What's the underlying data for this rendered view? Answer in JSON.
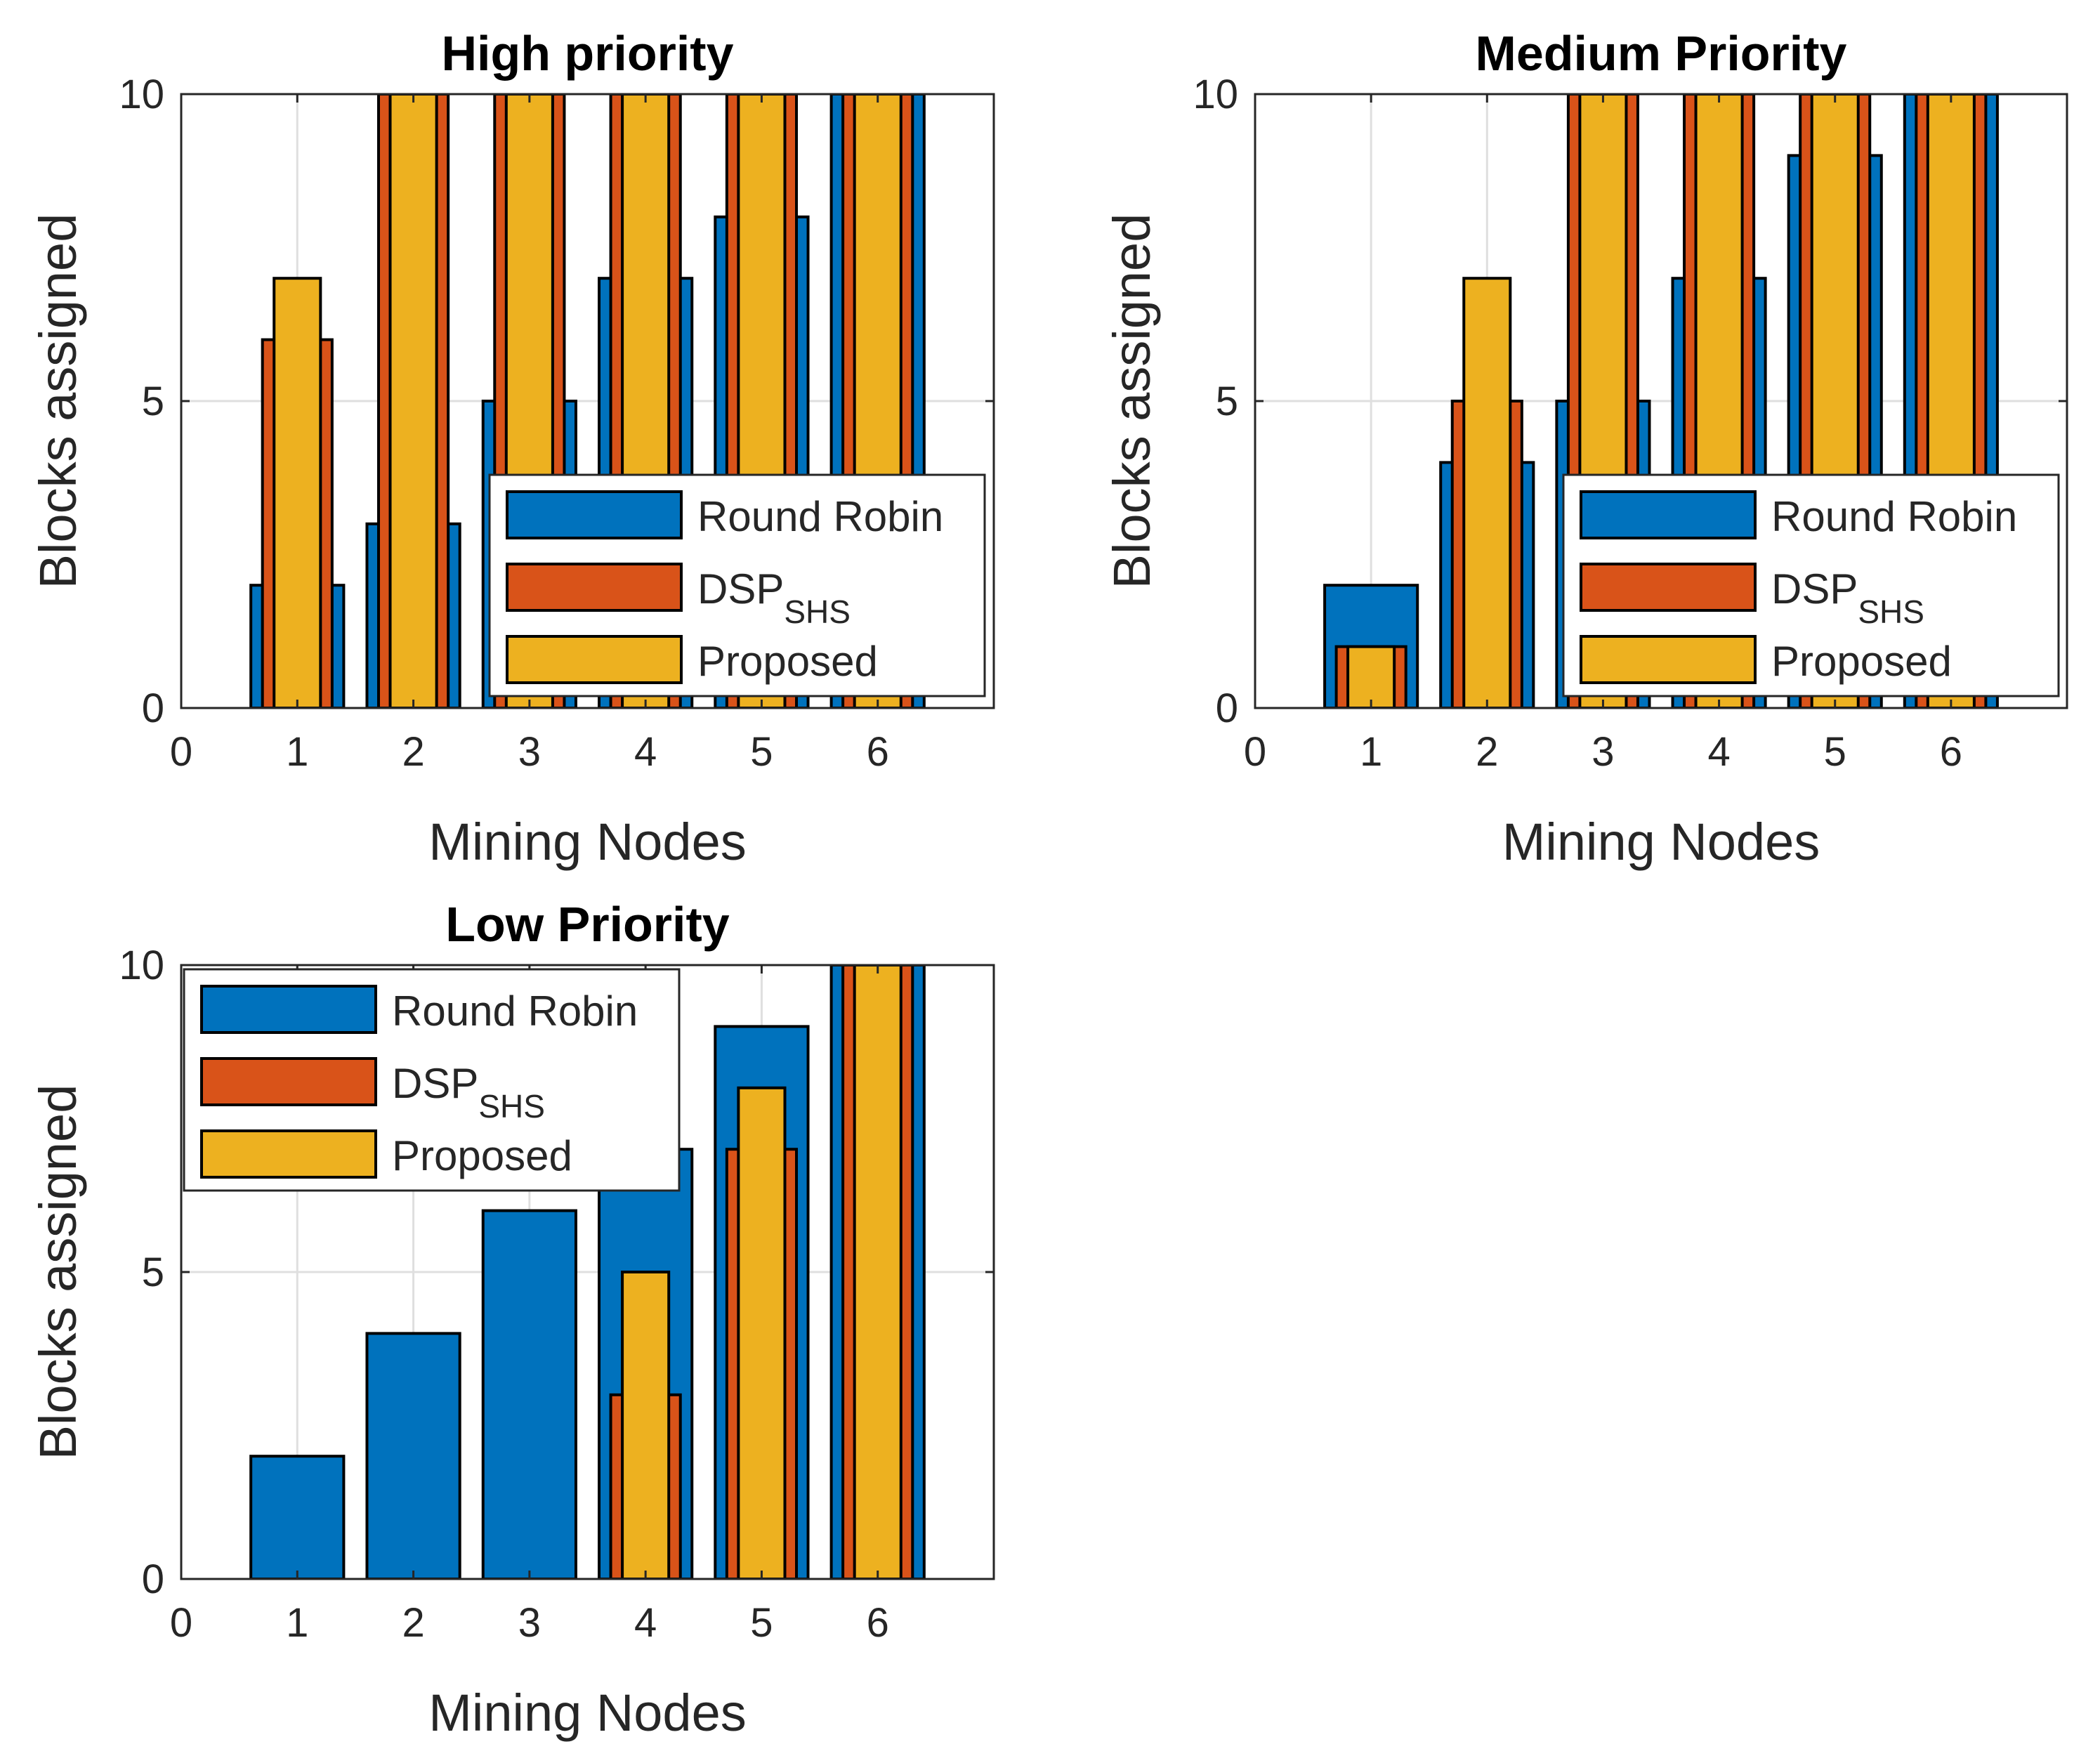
{
  "chart_data": [
    {
      "type": "bar",
      "title": "High priority",
      "xlabel": "Mining Nodes",
      "ylabel": "Blocks assigned",
      "xlim": [
        0,
        7
      ],
      "ylim": [
        0,
        10
      ],
      "xticks": [
        "0",
        "1",
        "2",
        "3",
        "4",
        "5",
        "6"
      ],
      "yticks": [
        "0",
        "5",
        "10"
      ],
      "grid": true,
      "legend_position": "bottom-right",
      "categories": [
        1,
        2,
        3,
        4,
        5,
        6
      ],
      "series": [
        {
          "name": "Round Robin",
          "sub": "",
          "color": "#0072BD",
          "values": [
            2,
            3,
            5,
            7,
            8,
            10
          ]
        },
        {
          "name": "DSP",
          "sub": "SHS",
          "color": "#D95319",
          "values": [
            6,
            10,
            10,
            10,
            10,
            10
          ]
        },
        {
          "name": "Proposed",
          "sub": "",
          "color": "#EDB120",
          "values": [
            7,
            10,
            10,
            10,
            10,
            10
          ]
        }
      ]
    },
    {
      "type": "bar",
      "title": "Medium Priority",
      "xlabel": "Mining Nodes",
      "ylabel": "Blocks assigned",
      "xlim": [
        0,
        7
      ],
      "ylim": [
        0,
        10
      ],
      "xticks": [
        "0",
        "1",
        "2",
        "3",
        "4",
        "5",
        "6"
      ],
      "yticks": [
        "0",
        "5",
        "10"
      ],
      "grid": true,
      "legend_position": "bottom-right",
      "categories": [
        1,
        2,
        3,
        4,
        5,
        6
      ],
      "series": [
        {
          "name": "Round Robin",
          "sub": "",
          "color": "#0072BD",
          "values": [
            2,
            4,
            5,
            7,
            9,
            10
          ]
        },
        {
          "name": "DSP",
          "sub": "SHS",
          "color": "#D95319",
          "values": [
            1,
            5,
            10,
            10,
            10,
            10
          ]
        },
        {
          "name": "Proposed",
          "sub": "",
          "color": "#EDB120",
          "values": [
            1,
            7,
            10,
            10,
            10,
            10
          ]
        }
      ]
    },
    {
      "type": "bar",
      "title": "Low Priority",
      "xlabel": "Mining Nodes",
      "ylabel": "Blocks assigned",
      "xlim": [
        0,
        7
      ],
      "ylim": [
        0,
        10
      ],
      "xticks": [
        "0",
        "1",
        "2",
        "3",
        "4",
        "5",
        "6"
      ],
      "yticks": [
        "0",
        "5",
        "10"
      ],
      "grid": true,
      "legend_position": "top-left",
      "categories": [
        1,
        2,
        3,
        4,
        5,
        6
      ],
      "series": [
        {
          "name": "Round Robin",
          "sub": "",
          "color": "#0072BD",
          "values": [
            2,
            4,
            6,
            7,
            9,
            10
          ]
        },
        {
          "name": "DSP",
          "sub": "SHS",
          "color": "#D95319",
          "values": [
            0,
            0,
            0,
            3,
            7,
            10
          ]
        },
        {
          "name": "Proposed",
          "sub": "",
          "color": "#EDB120",
          "values": [
            0,
            0,
            0,
            5,
            8,
            10
          ]
        }
      ]
    }
  ]
}
